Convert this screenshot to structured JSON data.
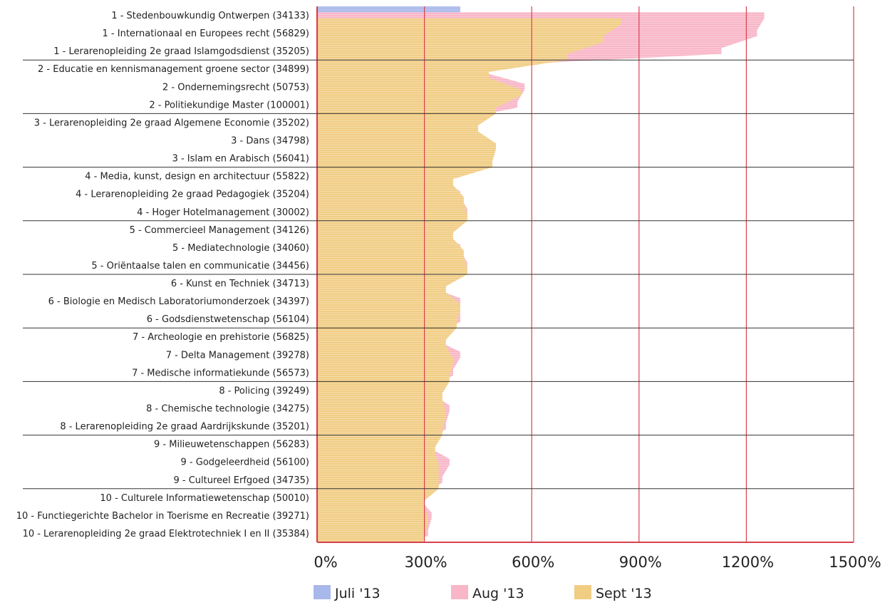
{
  "chart_data": {
    "type": "bar",
    "orientation": "horizontal",
    "categories": [
      "1 - Stedenbouwkundig Ontwerpen (34133)",
      "1 - Internationaal en Europees recht (56829)",
      "1 - Lerarenopleiding 2e graad Islamgodsdienst (35205)",
      "2 - Educatie en kennismanagement groene sector (34899)",
      "2 - Ondernemingsrecht (50753)",
      "2 - Politiekundige Master (100001)",
      "3 - Lerarenopleiding 2e graad Algemene Economie (35202)",
      "3 - Dans (34798)",
      "3 - Islam en Arabisch (56041)",
      "4 - Media, kunst, design en architectuur (55822)",
      "4 - Lerarenopleiding 2e graad Pedagogiek (35204)",
      "4 - Hoger Hotelmanagement (30002)",
      "5 - Commercieel Management (34126)",
      "5 - Mediatechnologie (34060)",
      "5 - Oriëntaalse talen en communicatie (34456)",
      "6 - Kunst en Techniek (34713)",
      "6 - Biologie en Medisch Laboratoriumonderzoek (34397)",
      "6 - Godsdienstwetenschap (56104)",
      "7 - Archeologie en prehistorie (56825)",
      "7 - Delta Management (39278)",
      "7 - Medische informatiekunde (56573)",
      "8 - Policing (39249)",
      "8 - Chemische technologie (34275)",
      "8 - Lerarenopleiding 2e graad Aardrijkskunde (35201)",
      "9 - Milieuwetenschappen (56283)",
      "9 - Godgeleerdheid (56100)",
      "9 - Cultureel Erfgoed (34735)",
      "10 - Culturele Informatiewetenschap  (50010)",
      "10 - Functiegerichte Bachelor in Toerisme en Recreatie (39271)",
      "10 - Lerarenopleiding 2e graad Elektrotechniek I en II (35384)"
    ],
    "series": [
      {
        "name": "Juli '13",
        "color": "#a9b8ea",
        "values": [
          400,
          350,
          320,
          350,
          350,
          340,
          340,
          300,
          300,
          330,
          300,
          300,
          300,
          300,
          300,
          300,
          300,
          300,
          300,
          300,
          300,
          300,
          290,
          290,
          280,
          280,
          280,
          260,
          260,
          260
        ]
      },
      {
        "name": "Aug '13",
        "color": "#f8b6c8",
        "values": [
          1250,
          1230,
          1130,
          460,
          580,
          560,
          390,
          470,
          490,
          310,
          400,
          420,
          340,
          400,
          420,
          310,
          400,
          400,
          330,
          400,
          380,
          320,
          370,
          360,
          310,
          370,
          350,
          290,
          320,
          310
        ]
      },
      {
        "name": "Sept '13",
        "color": "#f1cd84",
        "values": [
          850,
          800,
          700,
          480,
          570,
          500,
          450,
          500,
          490,
          380,
          410,
          420,
          380,
          410,
          420,
          360,
          400,
          390,
          360,
          380,
          370,
          350,
          360,
          350,
          330,
          340,
          340,
          300,
          310,
          300
        ]
      }
    ],
    "xticks": [
      "0%",
      "300%",
      "600%",
      "900%",
      "1200%",
      "1500%"
    ],
    "xlim": [
      0,
      1500
    ],
    "gridlines": true,
    "legend_position": "bottom"
  }
}
